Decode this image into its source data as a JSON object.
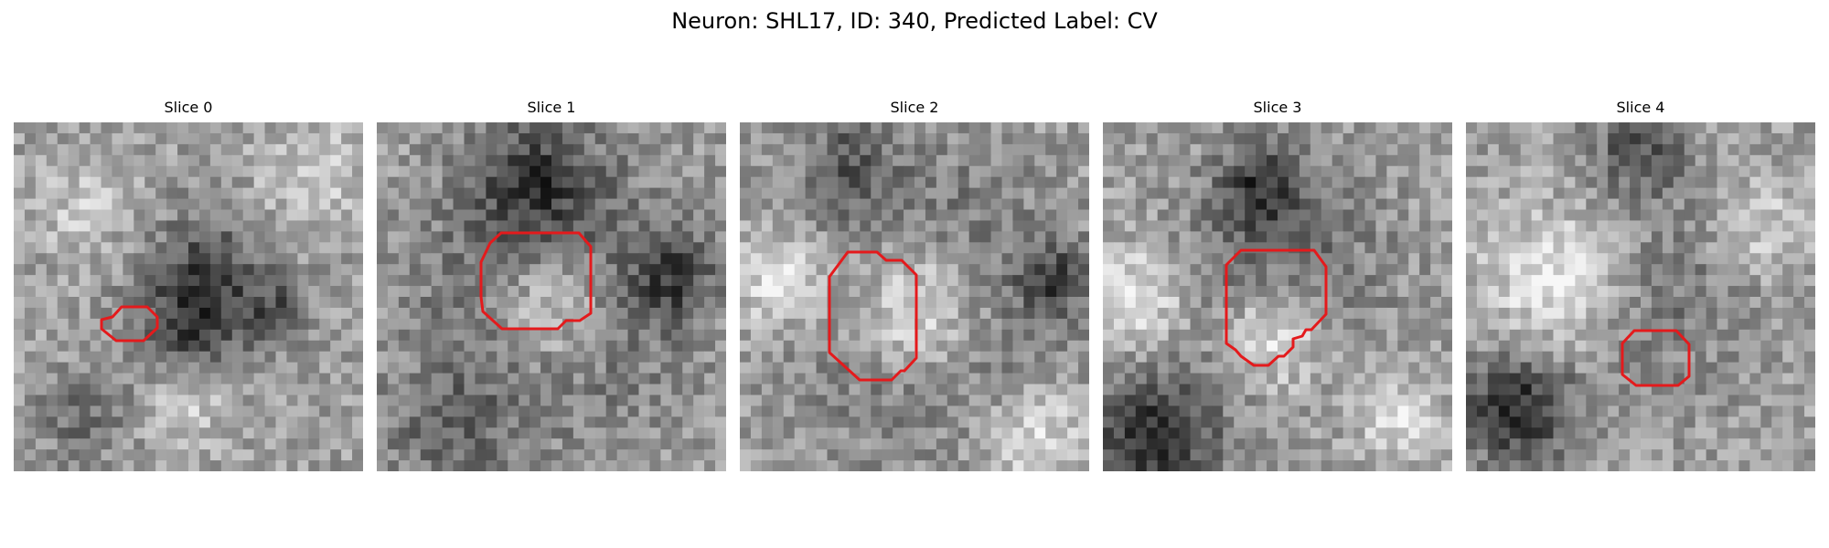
{
  "figure": {
    "title": "Neuron: SHL17, ID: 340, Predicted Label: CV"
  },
  "panels": [
    {
      "title": "Slice 0"
    },
    {
      "title": "Slice 1"
    },
    {
      "title": "Slice 2"
    },
    {
      "title": "Slice 3"
    },
    {
      "title": "Slice 4"
    }
  ],
  "colors": {
    "contour": "#e41a1c",
    "colormap": "grayscale (dark = low, light = high)"
  },
  "image": {
    "grid": "32x32 pixelated grayscale patch per slice",
    "contour_description": "red polygon outlining a candidate vesicle in each slice"
  }
}
